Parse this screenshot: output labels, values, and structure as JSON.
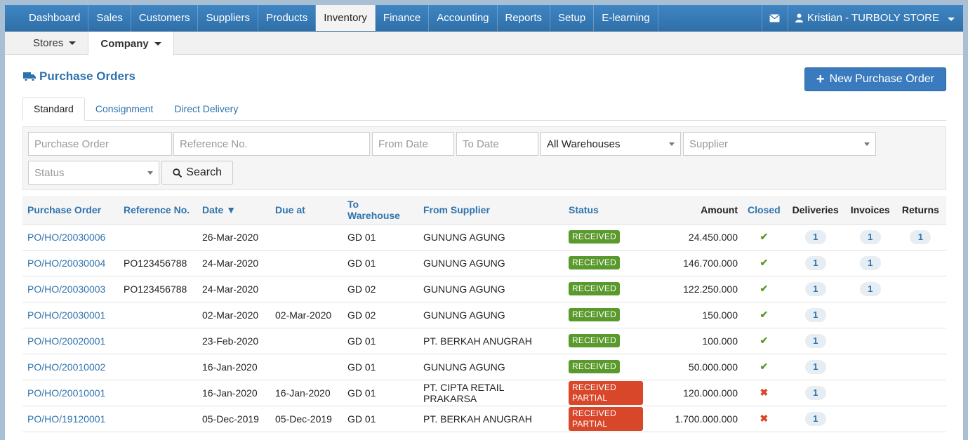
{
  "topnav": {
    "items": [
      "Dashboard",
      "Sales",
      "Customers",
      "Suppliers",
      "Products",
      "Inventory",
      "Finance",
      "Accounting",
      "Reports",
      "Setup",
      "E-learning"
    ],
    "active": "Inventory",
    "user_label": "Kristian - TURBOLY STORE"
  },
  "subnav": {
    "stores": "Stores",
    "company": "Company"
  },
  "page": {
    "title": "Purchase Orders",
    "new_button": "New Purchase Order"
  },
  "tabs": [
    "Standard",
    "Consignment",
    "Direct Delivery"
  ],
  "filters": {
    "purchase_order_ph": "Purchase Order",
    "reference_ph": "Reference No.",
    "from_date_ph": "From Date",
    "to_date_ph": "To Date",
    "warehouse_value": "All Warehouses",
    "supplier_ph": "Supplier",
    "status_ph": "Status",
    "search_label": "Search"
  },
  "table": {
    "headers": {
      "po": "Purchase Order",
      "ref": "Reference No.",
      "date": "Date ▼",
      "due": "Due at",
      "warehouse": "To Warehouse",
      "supplier": "From Supplier",
      "status": "Status",
      "amount": "Amount",
      "closed": "Closed",
      "deliveries": "Deliveries",
      "invoices": "Invoices",
      "returns": "Returns"
    },
    "rows": [
      {
        "po": "PO/HO/20030006",
        "ref": "",
        "date": "26-Mar-2020",
        "due": "",
        "warehouse": "GD 01",
        "supplier": "GUNUNG AGUNG",
        "status": "RECEIVED",
        "amount": "24.450.000",
        "closed": "✔",
        "deliveries": "1",
        "invoices": "1",
        "returns": "1"
      },
      {
        "po": "PO/HO/20030004",
        "ref": "PO123456788",
        "date": "24-Mar-2020",
        "due": "",
        "warehouse": "GD 01",
        "supplier": "GUNUNG AGUNG",
        "status": "RECEIVED",
        "amount": "146.700.000",
        "closed": "✔",
        "deliveries": "1",
        "invoices": "1",
        "returns": ""
      },
      {
        "po": "PO/HO/20030003",
        "ref": "PO123456788",
        "date": "24-Mar-2020",
        "due": "",
        "warehouse": "GD 02",
        "supplier": "GUNUNG AGUNG",
        "status": "RECEIVED",
        "amount": "122.250.000",
        "closed": "✔",
        "deliveries": "1",
        "invoices": "1",
        "returns": ""
      },
      {
        "po": "PO/HO/20030001",
        "ref": "",
        "date": "02-Mar-2020",
        "due": "02-Mar-2020",
        "warehouse": "GD 02",
        "supplier": "GUNUNG AGUNG",
        "status": "RECEIVED",
        "amount": "150.000",
        "closed": "✔",
        "deliveries": "1",
        "invoices": "",
        "returns": ""
      },
      {
        "po": "PO/HO/20020001",
        "ref": "",
        "date": "23-Feb-2020",
        "due": "",
        "warehouse": "GD 01",
        "supplier": "PT. BERKAH ANUGRAH",
        "status": "RECEIVED",
        "amount": "100.000",
        "closed": "✔",
        "deliveries": "1",
        "invoices": "",
        "returns": ""
      },
      {
        "po": "PO/HO/20010002",
        "ref": "",
        "date": "16-Jan-2020",
        "due": "",
        "warehouse": "GD 01",
        "supplier": "GUNUNG AGUNG",
        "status": "RECEIVED",
        "amount": "50.000.000",
        "closed": "✔",
        "deliveries": "1",
        "invoices": "",
        "returns": ""
      },
      {
        "po": "PO/HO/20010001",
        "ref": "",
        "date": "16-Jan-2020",
        "due": "16-Jan-2020",
        "warehouse": "GD 01",
        "supplier": "PT. CIPTA RETAIL PRAKARSA",
        "status": "RECEIVED PARTIAL",
        "amount": "120.000.000",
        "closed": "✖",
        "deliveries": "1",
        "invoices": "",
        "returns": ""
      },
      {
        "po": "PO/HO/19120001",
        "ref": "",
        "date": "05-Dec-2019",
        "due": "05-Dec-2019",
        "warehouse": "GD 01",
        "supplier": "PT. BERKAH ANUGRAH",
        "status": "RECEIVED PARTIAL",
        "amount": "1.700.000.000",
        "closed": "✖",
        "deliveries": "1",
        "invoices": "",
        "returns": ""
      }
    ]
  },
  "colors": {
    "accent": "#2f73ae",
    "received": "#5a9a2c",
    "partial": "#d9472b"
  }
}
